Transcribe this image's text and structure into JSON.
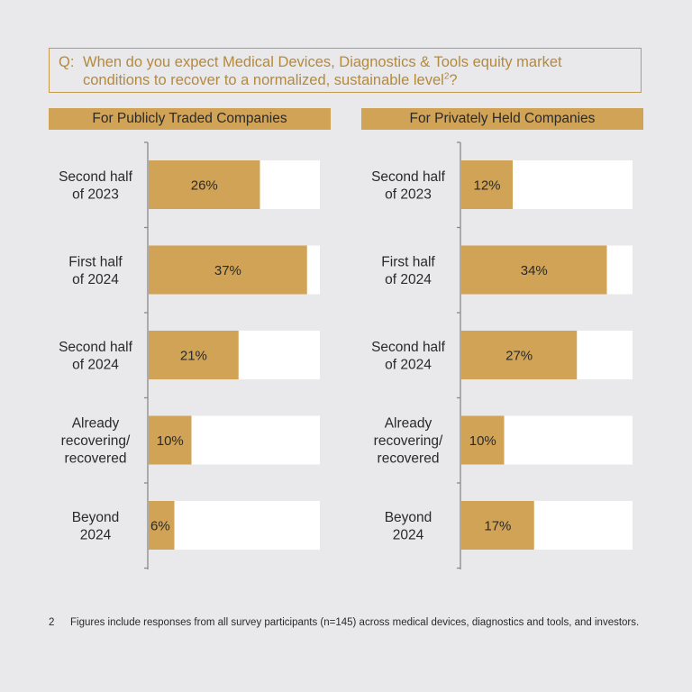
{
  "question": {
    "prefix": "Q:",
    "text": "When do you expect Medical Devices, Diagnostics & Tools equity market conditions to recover to a normalized, sustainable level",
    "superscript": "2",
    "suffix": "?"
  },
  "footnote": {
    "number": "2",
    "text": "Figures include responses from all survey participants (n=145) across medical devices, diagnostics and tools, and investors."
  },
  "colors": {
    "bar": "#d0a356",
    "track": "#ffffff",
    "background": "#e9e8ea",
    "accent_text": "#b48a3c"
  },
  "chart_data": [
    {
      "type": "bar",
      "orientation": "horizontal",
      "title": "For Publicly Traded Companies",
      "categories": [
        [
          "Second half",
          "of 2023"
        ],
        [
          "First half",
          "of 2024"
        ],
        [
          "Second half",
          "of 2024"
        ],
        [
          "Already",
          "recovering/",
          "recovered"
        ],
        [
          "Beyond",
          "2024"
        ]
      ],
      "values": [
        26,
        37,
        21,
        10,
        6
      ],
      "value_labels": [
        "26%",
        "37%",
        "21%",
        "10%",
        "6%"
      ],
      "xlim": [
        0,
        40
      ],
      "grid": false
    },
    {
      "type": "bar",
      "orientation": "horizontal",
      "title": "For Privately Held Companies",
      "categories": [
        [
          "Second half",
          "of 2023"
        ],
        [
          "First half",
          "of 2024"
        ],
        [
          "Second half",
          "of 2024"
        ],
        [
          "Already",
          "recovering/",
          "recovered"
        ],
        [
          "Beyond",
          "2024"
        ]
      ],
      "values": [
        12,
        34,
        27,
        10,
        17
      ],
      "value_labels": [
        "12%",
        "34%",
        "27%",
        "10%",
        "17%"
      ],
      "xlim": [
        0,
        40
      ],
      "grid": false
    }
  ]
}
